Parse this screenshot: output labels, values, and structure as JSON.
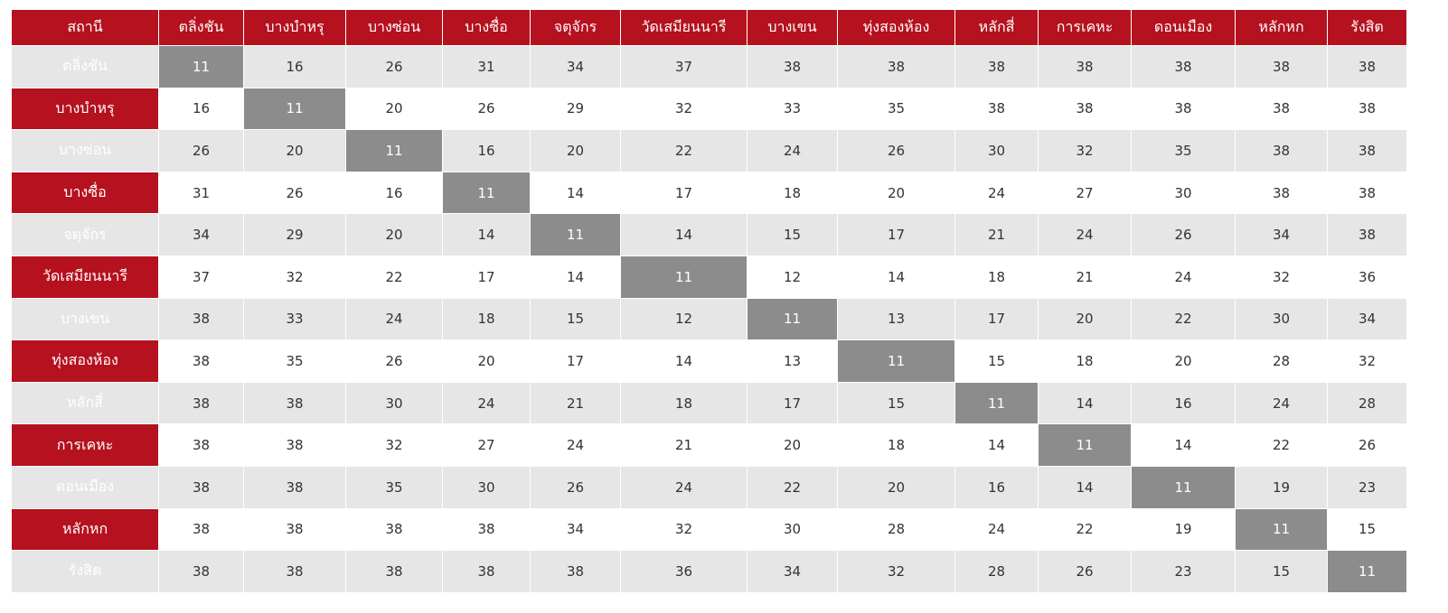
{
  "table": {
    "header": [
      "สถานี",
      "ตลิ่งชัน",
      "บางบำหรุ",
      "บางซ่อน",
      "บางซื่อ",
      "จตุจักร",
      "วัดเสมียนนารี",
      "บางเขน",
      "ทุ่งสองห้อง",
      "หลักสี่",
      "การเคหะ",
      "ดอนเมือง",
      "หลักหก",
      "รังสิต"
    ],
    "rows": [
      [
        "ตลิ่งชัน",
        11,
        16,
        26,
        31,
        34,
        37,
        38,
        38,
        38,
        38,
        38,
        38,
        38
      ],
      [
        "บางบำหรุ",
        16,
        11,
        20,
        26,
        29,
        32,
        33,
        35,
        38,
        38,
        38,
        38,
        38
      ],
      [
        "บางซ่อน",
        26,
        20,
        11,
        16,
        20,
        22,
        24,
        26,
        30,
        32,
        35,
        38,
        38
      ],
      [
        "บางซื่อ",
        31,
        26,
        16,
        11,
        14,
        17,
        18,
        20,
        24,
        27,
        30,
        38,
        38
      ],
      [
        "จตุจักร",
        34,
        29,
        20,
        14,
        11,
        14,
        15,
        17,
        21,
        24,
        26,
        34,
        38
      ],
      [
        "วัดเสมียนนารี",
        37,
        32,
        22,
        17,
        14,
        11,
        12,
        14,
        18,
        21,
        24,
        32,
        36
      ],
      [
        "บางเขน",
        38,
        33,
        24,
        18,
        15,
        12,
        11,
        13,
        17,
        20,
        22,
        30,
        34
      ],
      [
        "ทุ่งสองห้อง",
        38,
        35,
        26,
        20,
        17,
        14,
        13,
        11,
        15,
        18,
        20,
        28,
        32
      ],
      [
        "หลักสี่",
        38,
        38,
        30,
        24,
        21,
        18,
        17,
        15,
        11,
        14,
        16,
        24,
        28
      ],
      [
        "การเคหะ",
        38,
        38,
        32,
        27,
        24,
        21,
        20,
        18,
        14,
        11,
        14,
        22,
        26
      ],
      [
        "ดอนเมือง",
        38,
        38,
        35,
        30,
        26,
        24,
        22,
        20,
        16,
        14,
        11,
        19,
        23
      ],
      [
        "หลักหก",
        38,
        38,
        38,
        38,
        34,
        32,
        30,
        28,
        24,
        22,
        19,
        11,
        15
      ],
      [
        "รังสิต",
        38,
        38,
        38,
        38,
        38,
        36,
        34,
        32,
        28,
        26,
        23,
        15,
        11
      ]
    ]
  }
}
